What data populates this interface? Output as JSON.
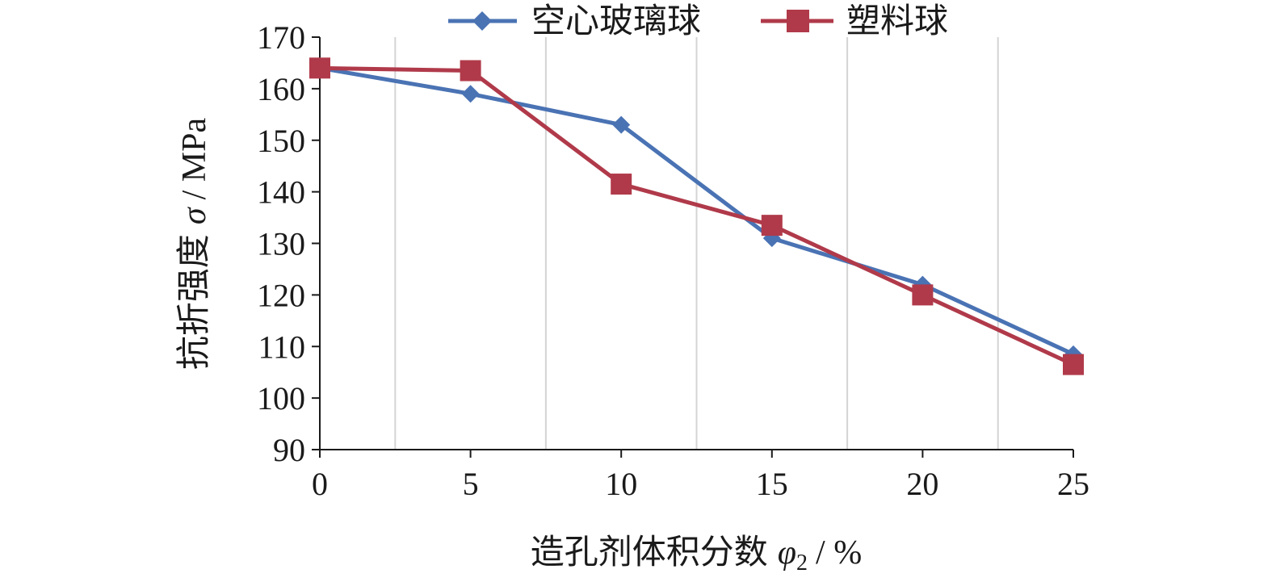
{
  "chart_data": {
    "type": "line",
    "title": "",
    "xlabel": "造孔剂体积分数",
    "xlabel_symbol": "φ",
    "xlabel_subscript": "2",
    "xlabel_unit": "/ %",
    "ylabel": "抗折强度",
    "ylabel_symbol": "σ",
    "ylabel_unit": "/ MPa",
    "xlim": [
      0,
      25
    ],
    "ylim": [
      90,
      170
    ],
    "x_ticks": [
      "0",
      "5",
      "10",
      "15",
      "20",
      "25"
    ],
    "y_ticks": [
      "90",
      "100",
      "110",
      "120",
      "130",
      "140",
      "150",
      "160",
      "170"
    ],
    "grid": "vertical",
    "legend_position": "top",
    "series": [
      {
        "name": "空心玻璃球",
        "color": "#4a73b4",
        "marker": "diamond",
        "x": [
          0,
          5,
          10,
          15,
          20,
          25
        ],
        "y": [
          164,
          159,
          153,
          131,
          122,
          108.5
        ]
      },
      {
        "name": "塑料球",
        "color": "#b03a4a",
        "marker": "square",
        "x": [
          0,
          5,
          10,
          15,
          20,
          25
        ],
        "y": [
          164,
          163.5,
          141.5,
          133.5,
          120,
          106.5
        ]
      }
    ]
  }
}
